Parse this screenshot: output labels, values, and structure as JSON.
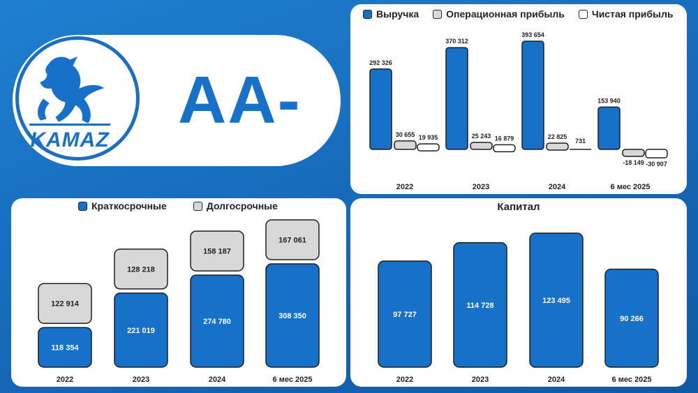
{
  "rating": "AA-",
  "logo": {
    "text": "KAMAZ"
  },
  "colors": {
    "accent": "#1771c9",
    "gray": "#d8d8d8",
    "white": "#ffffff",
    "background": "#1668b8"
  },
  "chart_data": [
    {
      "id": "income",
      "type": "bar",
      "title": "",
      "categories": [
        "2022",
        "2023",
        "2024",
        "6 мес 2025"
      ],
      "series": [
        {
          "name": "Выручка",
          "color": "#1771c9",
          "values": [
            292326,
            370312,
            393654,
            153940
          ],
          "labels": [
            "292 326",
            "370 312",
            "393 654",
            "153 940"
          ]
        },
        {
          "name": "Операционная прибыль",
          "color": "#d8d8d8",
          "values": [
            30655,
            25243,
            22825,
            -18149
          ],
          "labels": [
            "30 655",
            "25 243",
            "22 825",
            "-18 149"
          ]
        },
        {
          "name": "Чистая прибыль",
          "color": "#ffffff",
          "values": [
            19935,
            16879,
            731,
            -30907
          ],
          "labels": [
            "19 935",
            "16 879",
            "731",
            "-30 907"
          ]
        }
      ],
      "legend": "top"
    },
    {
      "id": "debt",
      "type": "bar",
      "stacked": true,
      "title": "",
      "categories": [
        "2022",
        "2023",
        "2024",
        "6 мес 2025"
      ],
      "series": [
        {
          "name": "Краткосрочные",
          "color": "#1771c9",
          "values": [
            118354,
            221019,
            274780,
            308350
          ],
          "labels": [
            "118 354",
            "221 019",
            "274 780",
            "308 350"
          ]
        },
        {
          "name": "Долгосрочные",
          "color": "#d8d8d8",
          "values": [
            122914,
            128218,
            158187,
            167061
          ],
          "labels": [
            "122 914",
            "128 218",
            "158 187",
            "167 061"
          ]
        }
      ],
      "legend": "top"
    },
    {
      "id": "capital",
      "type": "bar",
      "title": "Капитал",
      "categories": [
        "2022",
        "2023",
        "2024",
        "6 мес 2025"
      ],
      "series": [
        {
          "name": "Капитал",
          "color": "#1771c9",
          "values": [
            97727,
            114728,
            123495,
            90266
          ],
          "labels": [
            "97 727",
            "114 728",
            "123 495",
            "90 266"
          ]
        }
      ]
    }
  ]
}
